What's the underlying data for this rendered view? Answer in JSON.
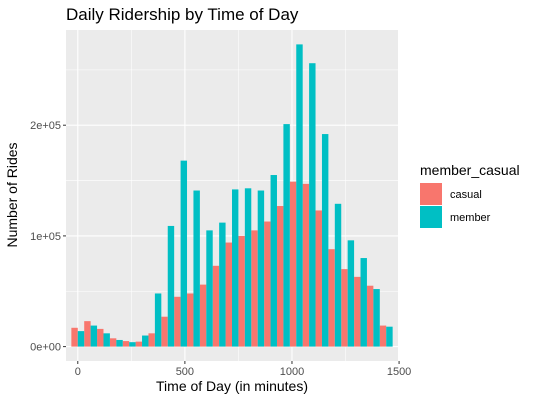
{
  "chart_data": {
    "type": "bar",
    "title": "Daily Ridership by Time of Day",
    "xlabel": "Time of Day (in minutes)",
    "ylabel": "Number of Rides",
    "x": [
      0,
      60,
      120,
      180,
      240,
      300,
      360,
      420,
      480,
      540,
      600,
      660,
      720,
      780,
      840,
      900,
      960,
      1020,
      1080,
      1140,
      1200,
      1260,
      1320,
      1380,
      1440
    ],
    "series": [
      {
        "name": "casual",
        "color": "#F8766D",
        "values": [
          17000,
          23000,
          16000,
          7500,
          5000,
          4500,
          12000,
          27000,
          45000,
          48000,
          56000,
          73000,
          94000,
          100000,
          105000,
          113000,
          127000,
          149000,
          147000,
          123000,
          88000,
          70000,
          63000,
          55000,
          19000
        ]
      },
      {
        "name": "member",
        "color": "#00BFC4",
        "values": [
          14000,
          19000,
          12000,
          6000,
          4000,
          10000,
          48000,
          109000,
          168000,
          141000,
          105000,
          112000,
          142000,
          143000,
          141000,
          155000,
          201000,
          273000,
          256000,
          192000,
          129000,
          96000,
          80000,
          52000,
          18000
        ]
      }
    ],
    "xlim": [
      -55,
      1495
    ],
    "ylim": [
      -13000,
      286000
    ],
    "x_ticks": [
      0,
      500,
      1000,
      1500
    ],
    "x_tick_labels": [
      "0",
      "500",
      "1000",
      "1500"
    ],
    "y_ticks": [
      0,
      100000,
      200000
    ],
    "y_tick_labels": [
      "0e+00",
      "1e+05",
      "2e+05"
    ],
    "legend_title": "member_casual",
    "legend_position": "right",
    "grid": true,
    "panel_color": "#EBEBEB",
    "grid_color": "#FFFFFF"
  }
}
